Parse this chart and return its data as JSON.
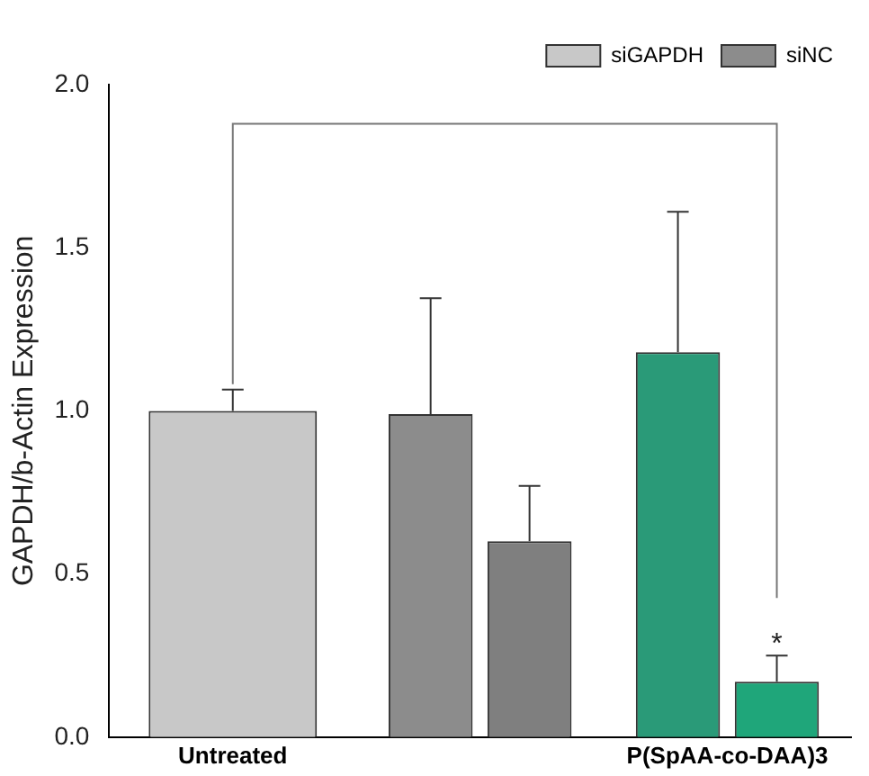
{
  "chart_data": {
    "type": "bar",
    "ylabel": "GAPDH/b-Actin Expression",
    "categories": [
      "Untreated",
      null,
      "P(SpAA-co-DAA)3"
    ],
    "series": [
      {
        "name": "siGAPDH",
        "color": "#c8c8c8",
        "colors": [
          "#c8c8c8",
          "#7f7f7f",
          "#1fa67a"
        ],
        "values": [
          1.0,
          0.6,
          0.17
        ],
        "errors": [
          [
            1.0,
            1.065
          ],
          [
            0.6,
            0.77
          ],
          [
            0.17,
            0.25
          ]
        ]
      },
      {
        "name": "siNC",
        "color": "#8c8c8c",
        "colors": [
          null,
          "#8c8c8c",
          "#2a9a78"
        ],
        "values": [
          null,
          0.99,
          1.18
        ],
        "errors": [
          null,
          [
            0.99,
            1.345
          ],
          [
            1.18,
            1.61
          ]
        ]
      }
    ],
    "ylim": [
      0,
      2
    ],
    "yticks": [
      {
        "value": 0,
        "label": "0.0"
      },
      {
        "value": 0.5,
        "label": "0.5"
      },
      {
        "value": 1,
        "label": "1.0"
      },
      {
        "value": 1.5,
        "label": "1.5"
      },
      {
        "value": 2,
        "label": "2.0"
      }
    ],
    "grid": false,
    "legend": "top right",
    "annotations": [
      "*"
    ]
  }
}
